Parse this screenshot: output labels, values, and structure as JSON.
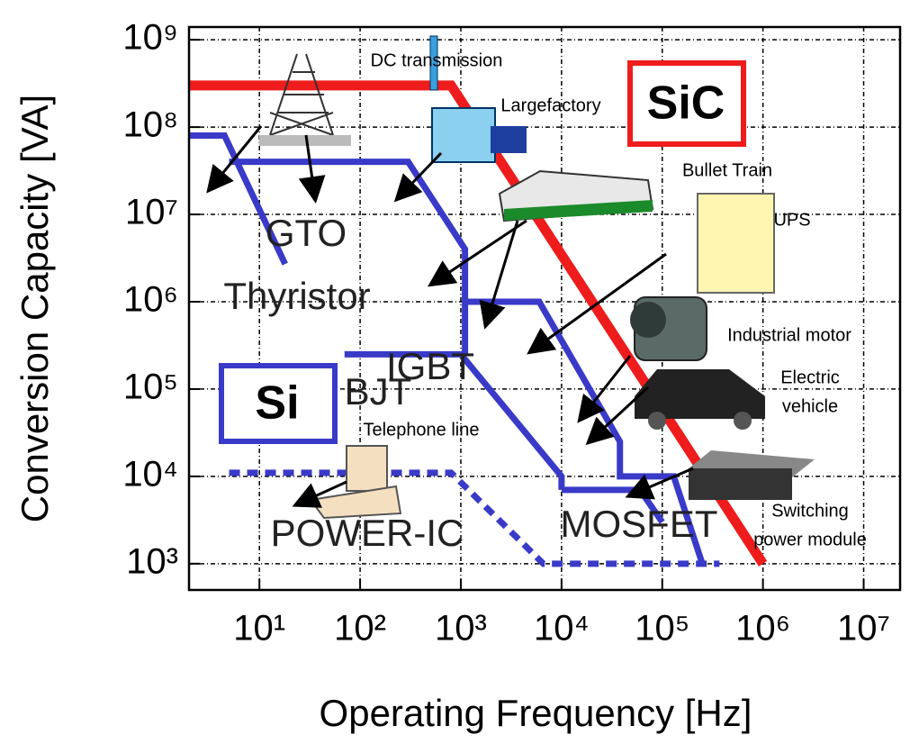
{
  "chart_data": {
    "type": "line",
    "x_label": "Operating Frequency [Hz]",
    "y_label": "Conversion Capacity [VA]",
    "xscale": "log",
    "yscale": "log",
    "grid": true,
    "xlim": [
      2,
      23000000
    ],
    "ylim": [
      500,
      1400000000
    ],
    "xticks": [
      {
        "value": 10,
        "label": "10¹"
      },
      {
        "value": 100,
        "label": "10²"
      },
      {
        "value": 1000,
        "label": "10³"
      },
      {
        "value": 10000,
        "label": "10⁴"
      },
      {
        "value": 100000,
        "label": "10⁵"
      },
      {
        "value": 1000000,
        "label": "10⁶"
      },
      {
        "value": 10000000,
        "label": "10⁷"
      }
    ],
    "yticks": [
      {
        "value": 1000,
        "label": "10³"
      },
      {
        "value": 10000,
        "label": "10⁴"
      },
      {
        "value": 100000,
        "label": "10⁵"
      },
      {
        "value": 1000000,
        "label": "10⁶"
      },
      {
        "value": 10000000,
        "label": "10⁷"
      },
      {
        "value": 100000000,
        "label": "10⁸"
      },
      {
        "value": 1000000000,
        "label": "10⁹"
      }
    ],
    "series": [
      {
        "name": "SiC",
        "color": "#ee1c1c",
        "dash": false,
        "x": [
          2,
          800,
          1000000
        ],
        "values": [
          300000000,
          300000000,
          1000
        ]
      },
      {
        "name": "Thyristor",
        "color": "#3a3ac8",
        "dash": false,
        "x": [
          2,
          4.5,
          18
        ],
        "values": [
          80000000,
          80000000,
          2700000
        ]
      },
      {
        "name": "GTO",
        "color": "#3a3ac8",
        "dash": false,
        "x": [
          5,
          300,
          1100,
          1100
        ],
        "values": [
          40000000,
          40000000,
          4000000,
          250000
        ]
      },
      {
        "name": "IGBT",
        "color": "#3a3ac8",
        "dash": false,
        "x": [
          1100,
          6000,
          38000,
          38000,
          130000,
          250000
        ],
        "values": [
          1000000,
          1000000,
          25000,
          10000,
          10000,
          1000
        ]
      },
      {
        "name": "BJT",
        "color": "#3a3ac8",
        "dash": false,
        "x": [
          70,
          1000,
          10000,
          10000
        ],
        "values": [
          250000,
          250000,
          10000,
          7000
        ]
      },
      {
        "name": "MOSFET",
        "color": "#3a3ac8",
        "dash": false,
        "x": [
          10000,
          60000,
          100000
        ],
        "values": [
          7000,
          7000,
          3000
        ]
      },
      {
        "name": "POWER-IC",
        "color": "#3a3ac8",
        "dash": true,
        "x": [
          5,
          800,
          6600,
          370000
        ],
        "values": [
          11000,
          11000,
          1000,
          1000
        ]
      }
    ],
    "annotations": [
      {
        "lines": [
          "Si"
        ]
      },
      {
        "lines": [
          "DC transmission"
        ]
      },
      {
        "lines": [
          "Largefactory"
        ]
      },
      {
        "lines": [
          "Bullet Train"
        ]
      },
      {
        "lines": [
          "UPS"
        ]
      },
      {
        "lines": [
          "Industrial motor"
        ]
      },
      {
        "lines": [
          "Electric",
          "vehicle"
        ]
      },
      {
        "lines": [
          "Telephone line"
        ]
      },
      {
        "lines": [
          "Switching",
          "power module"
        ]
      }
    ]
  }
}
